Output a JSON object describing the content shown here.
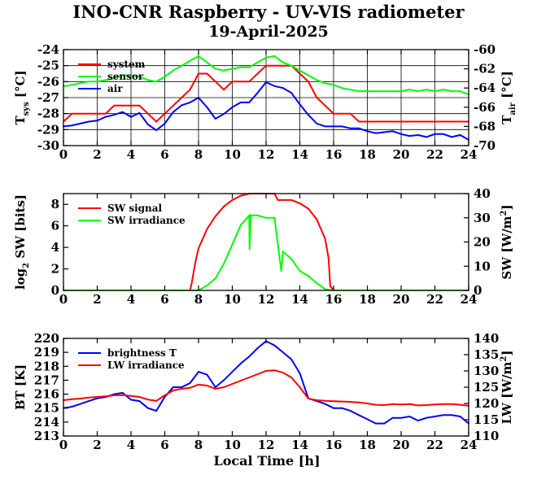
{
  "title": "INO-CNR Raspberry - UV-VIS radiometer",
  "subtitle": "19-April-2025",
  "colors": {
    "red": "#ff0000",
    "green": "#00ff00",
    "blue": "#0000ff",
    "axis": "#000000"
  },
  "xaxis": {
    "label": "Local Time [h]",
    "range": [
      0,
      24
    ],
    "ticks": [
      "0",
      "2",
      "4",
      "6",
      "8",
      "10",
      "12",
      "14",
      "16",
      "18",
      "20",
      "22",
      "24"
    ]
  },
  "chart_data": [
    {
      "type": "line",
      "ylabel_left": "T_sys [°C]",
      "ylabel_right": "T_air [°C]",
      "ylim_left": [
        -30,
        -24
      ],
      "ylim_right": [
        -70,
        -60
      ],
      "yticks_left": [
        "-24",
        "-25",
        "-26",
        "-27",
        "-28",
        "-29",
        "-30"
      ],
      "yticks_right": [
        "-60",
        "-62",
        "-64",
        "-66",
        "-68",
        "-70"
      ],
      "grid": true,
      "legend_position": "top-left",
      "series": [
        {
          "name": "system",
          "axis": "left",
          "color": "#ff0000",
          "x": [
            0,
            0.5,
            1,
            1.5,
            2,
            2.5,
            3,
            3.5,
            4,
            4.5,
            5,
            5.5,
            6,
            6.5,
            7,
            7.5,
            8,
            8.5,
            9,
            9.5,
            10,
            10.5,
            11,
            11.5,
            12,
            12.5,
            13,
            13.5,
            14,
            14.5,
            15,
            15.5,
            16,
            16.5,
            17,
            17.5,
            18,
            18.5,
            19,
            19.5,
            20,
            20.5,
            21,
            21.5,
            22,
            22.5,
            23,
            23.5,
            24
          ],
          "values": [
            -28.5,
            -28,
            -28,
            -28,
            -28,
            -28,
            -27.5,
            -27.5,
            -27.5,
            -27.5,
            -28,
            -28.5,
            -28,
            -27.5,
            -27,
            -26.5,
            -25.5,
            -25.5,
            -26,
            -26.5,
            -26,
            -26,
            -26,
            -25.5,
            -25,
            -25,
            -25,
            -25,
            -25.5,
            -26,
            -27,
            -27.5,
            -28,
            -28,
            -28,
            -28.5,
            -28.5,
            -28.5,
            -28.5,
            -28.5,
            -28.5,
            -28.5,
            -28.5,
            -28.5,
            -28.5,
            -28.5,
            -28.5,
            -28.5,
            -28.5
          ]
        },
        {
          "name": "sensor",
          "axis": "left",
          "color": "#00ff00",
          "x": [
            0,
            0.5,
            1,
            1.5,
            2,
            2.5,
            3,
            3.5,
            4,
            4.5,
            5,
            5.5,
            6,
            6.5,
            7,
            7.5,
            8,
            8.5,
            9,
            9.5,
            10,
            10.5,
            11,
            11.5,
            12,
            12.5,
            13,
            13.5,
            14,
            14.5,
            15,
            15.5,
            16,
            16.5,
            17,
            17.5,
            18,
            18.5,
            19,
            19.5,
            20,
            20.5,
            21,
            21.5,
            22,
            22.5,
            23,
            23.5,
            24
          ],
          "values": [
            -26.3,
            -26.2,
            -26.1,
            -26,
            -26,
            -25.9,
            -25.8,
            -25.6,
            -25.6,
            -25.7,
            -25.9,
            -26,
            -25.7,
            -25.3,
            -25,
            -24.7,
            -24.4,
            -24.8,
            -25.2,
            -25.3,
            -25.2,
            -25.1,
            -25.1,
            -24.8,
            -24.5,
            -24.4,
            -24.8,
            -25,
            -25.3,
            -25.6,
            -25.9,
            -26.1,
            -26.2,
            -26.4,
            -26.5,
            -26.6,
            -26.6,
            -26.6,
            -26.6,
            -26.6,
            -26.6,
            -26.5,
            -26.6,
            -26.5,
            -26.6,
            -26.5,
            -26.6,
            -26.6,
            -26.8
          ]
        },
        {
          "name": "air",
          "axis": "right",
          "color": "#0000ff",
          "x": [
            0,
            0.5,
            1,
            1.5,
            2,
            2.5,
            3,
            3.5,
            4,
            4.5,
            5,
            5.5,
            6,
            6.5,
            7,
            7.5,
            8,
            8.5,
            9,
            9.5,
            10,
            10.5,
            11,
            11.5,
            12,
            12.5,
            13,
            13.5,
            14,
            14.5,
            15,
            15.5,
            16,
            16.5,
            17,
            17.5,
            18,
            18.5,
            19,
            19.5,
            20,
            20.5,
            21,
            21.5,
            22,
            22.5,
            23,
            23.5,
            24
          ],
          "values": [
            -68,
            -67.9,
            -67.7,
            -67.5,
            -67.4,
            -67,
            -66.8,
            -66.5,
            -67,
            -66.6,
            -67.8,
            -68.4,
            -67.7,
            -66.5,
            -65.8,
            -65.5,
            -65,
            -66,
            -67.2,
            -66.7,
            -66,
            -65.5,
            -65.5,
            -64.5,
            -63.4,
            -63.8,
            -64,
            -64.5,
            -65.7,
            -66.8,
            -67.7,
            -68,
            -68,
            -68,
            -68.2,
            -68.2,
            -68.5,
            -68.7,
            -68.6,
            -68.5,
            -68.8,
            -69,
            -68.9,
            -69.1,
            -68.8,
            -68.8,
            -69.1,
            -68.9,
            -69.4
          ]
        }
      ]
    },
    {
      "type": "line",
      "ylabel_left": "log_2 SW [bits]",
      "ylabel_right": "SW [W/m^2]",
      "ylim_left": [
        0,
        9
      ],
      "ylim_right": [
        0,
        40
      ],
      "yticks_left": [
        "0",
        "2",
        "4",
        "6",
        "8"
      ],
      "yticks_right": [
        "0",
        "10",
        "20",
        "30",
        "40"
      ],
      "grid": false,
      "legend_position": "top-left",
      "series": [
        {
          "name": "SW signal",
          "axis": "left",
          "color": "#ff0000",
          "x": [
            0,
            7.5,
            7.6,
            7.8,
            8,
            8.5,
            9,
            9.5,
            10,
            10.5,
            11,
            11.5,
            12,
            12.5,
            12.7,
            12.9,
            13.5,
            14,
            14.5,
            15,
            15.5,
            15.7,
            15.8,
            16,
            24
          ],
          "values": [
            0,
            0,
            0.7,
            2.5,
            3.9,
            5.7,
            6.9,
            7.8,
            8.4,
            8.8,
            9,
            9,
            9,
            9,
            8.4,
            8.4,
            8.4,
            8.1,
            7.6,
            6.6,
            4.8,
            3,
            0.4,
            0,
            0
          ]
        },
        {
          "name": "SW irradiance",
          "axis": "right",
          "color": "#00ff00",
          "x": [
            0,
            8,
            8.5,
            9,
            9.5,
            10,
            10.5,
            11,
            11.02,
            11.1,
            11.5,
            12,
            12.5,
            12.9,
            13,
            13.5,
            14,
            14.5,
            15,
            15.5,
            16,
            24
          ],
          "values": [
            0,
            0,
            2,
            5,
            11,
            19,
            27,
            31,
            17,
            31,
            31,
            30,
            30,
            8,
            16,
            13,
            8,
            6,
            3,
            0.5,
            0,
            0
          ]
        }
      ]
    },
    {
      "type": "line",
      "ylabel_left": "BT [K]",
      "ylabel_right": "LW [W/m^2]",
      "ylim_left": [
        213,
        220
      ],
      "ylim_right": [
        110,
        140
      ],
      "yticks_left": [
        "220",
        "219",
        "218",
        "217",
        "216",
        "215",
        "214",
        "213"
      ],
      "yticks_right": [
        "140",
        "135",
        "130",
        "125",
        "120",
        "115",
        "110"
      ],
      "grid": false,
      "legend_position": "top-left",
      "series": [
        {
          "name": "brightness T",
          "axis": "left",
          "color": "#0000ff",
          "x": [
            0,
            0.5,
            1,
            1.5,
            2,
            2.5,
            3,
            3.5,
            4,
            4.5,
            5,
            5.5,
            6,
            6.5,
            7,
            7.5,
            8,
            8.5,
            9,
            9.5,
            10,
            10.5,
            11,
            11.5,
            12,
            12.5,
            13,
            13.5,
            14,
            14.5,
            15,
            15.5,
            16,
            16.5,
            17,
            17.5,
            18,
            18.5,
            19,
            19.5,
            20,
            20.5,
            21,
            21.5,
            22,
            22.5,
            23,
            23.5,
            24
          ],
          "values": [
            215,
            215.1,
            215.3,
            215.5,
            215.7,
            215.8,
            216,
            216.1,
            215.6,
            215.5,
            215,
            214.8,
            215.8,
            216.5,
            216.5,
            216.8,
            217.6,
            217.4,
            216.5,
            217,
            217.6,
            218.2,
            218.7,
            219.3,
            219.8,
            219.5,
            219,
            218.5,
            217.5,
            215.7,
            215.5,
            215.3,
            215,
            215,
            214.8,
            214.5,
            214.2,
            213.9,
            213.9,
            214.3,
            214.3,
            214.4,
            214.1,
            214.3,
            214.4,
            214.5,
            214.5,
            214.4,
            213.9
          ]
        },
        {
          "name": "LW irradiance",
          "axis": "right",
          "color": "#ff0000",
          "x": [
            0,
            0.5,
            1,
            1.5,
            2,
            2.5,
            3,
            3.5,
            4,
            4.5,
            5,
            5.5,
            6,
            6.5,
            7,
            7.5,
            8,
            8.5,
            9,
            9.5,
            10,
            10.5,
            11,
            11.5,
            12,
            12.5,
            13,
            13.5,
            14,
            14.5,
            15,
            15.5,
            16,
            16.5,
            17,
            17.5,
            18,
            18.5,
            19,
            19.5,
            20,
            20.5,
            21,
            21.5,
            22,
            22.5,
            23,
            23.5,
            24
          ],
          "values": [
            121,
            121.3,
            121.5,
            121.8,
            122,
            122.2,
            122.5,
            122.6,
            122.3,
            122,
            121.2,
            120.8,
            122.5,
            124,
            124.5,
            124.8,
            125.8,
            125.5,
            124.5,
            125,
            126,
            127,
            128,
            129,
            130,
            130.2,
            129.5,
            128,
            125,
            121.5,
            121,
            120.8,
            120.7,
            120.6,
            120.5,
            120.3,
            120,
            119.6,
            119.5,
            119.8,
            119.7,
            119.8,
            119.4,
            119.5,
            119.7,
            119.8,
            119.8,
            119.6,
            119.3
          ]
        }
      ]
    }
  ]
}
